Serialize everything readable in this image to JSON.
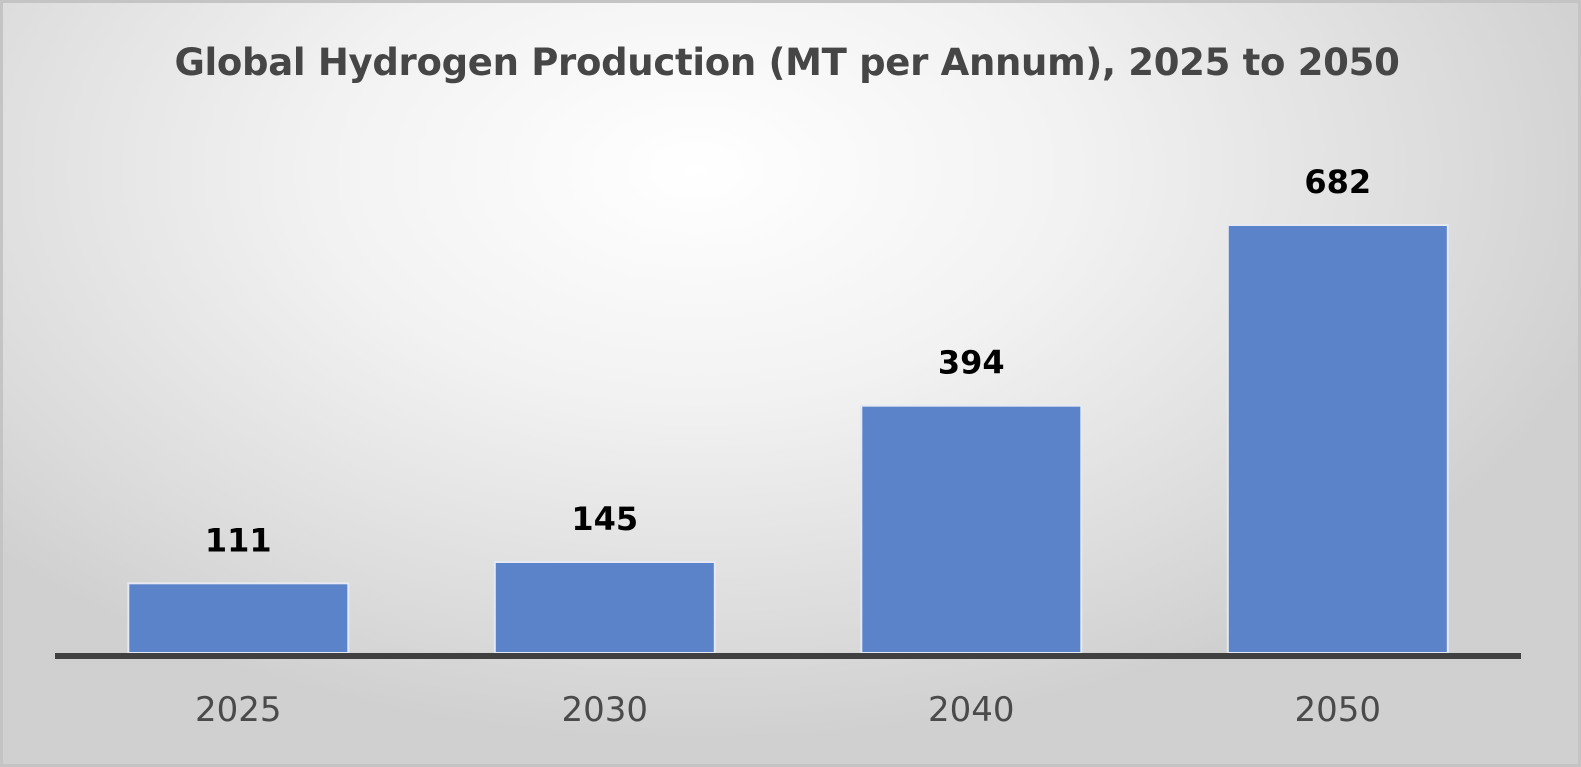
{
  "chart_data": {
    "type": "bar",
    "title": "Global Hydrogen Production (MT per Annum), 2025 to 2050",
    "categories": [
      "2025",
      "2030",
      "2040",
      "2050"
    ],
    "values": [
      111,
      145,
      394,
      682
    ],
    "data_labels": [
      "111",
      "145",
      "394",
      "682"
    ],
    "xlabel": "",
    "ylabel": "",
    "ylim": [
      0,
      682
    ],
    "grid": false,
    "legend": "none",
    "bar_color": "#5b83c9"
  }
}
